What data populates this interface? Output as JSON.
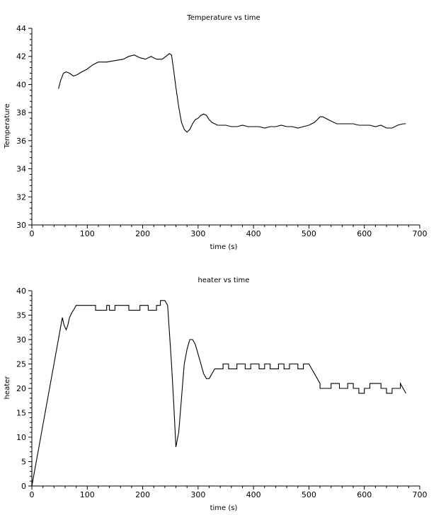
{
  "chart_data": [
    {
      "type": "line",
      "title": "Temperature vs time",
      "xlabel": "time (s)",
      "ylabel": "Temperature",
      "xlim": [
        0,
        700
      ],
      "ylim": [
        30,
        44
      ],
      "xticks": [
        0,
        100,
        200,
        300,
        400,
        500,
        600,
        700
      ],
      "yticks": [
        30,
        32,
        34,
        36,
        38,
        40,
        42,
        44
      ],
      "grid": false,
      "series": [
        {
          "x": [
            48,
            52,
            57,
            62,
            68,
            75,
            82,
            90,
            100,
            110,
            120,
            135,
            150,
            165,
            175,
            185,
            195,
            205,
            215,
            225,
            235,
            242,
            248,
            252,
            256,
            260,
            265,
            270,
            275,
            280,
            285,
            290,
            295,
            300,
            305,
            310,
            315,
            320,
            325,
            330,
            335,
            340,
            350,
            360,
            370,
            380,
            390,
            400,
            410,
            420,
            430,
            440,
            450,
            460,
            470,
            480,
            490,
            500,
            510,
            515,
            520,
            525,
            530,
            535,
            540,
            545,
            550,
            560,
            570,
            580,
            590,
            600,
            610,
            620,
            630,
            640,
            650,
            660,
            670,
            675
          ],
          "y": [
            39.7,
            40.3,
            40.8,
            40.9,
            40.8,
            40.6,
            40.7,
            40.9,
            41.1,
            41.4,
            41.6,
            41.6,
            41.7,
            41.8,
            42.0,
            42.1,
            41.9,
            41.8,
            42.0,
            41.8,
            41.8,
            42.0,
            42.2,
            42.1,
            41.0,
            39.8,
            38.4,
            37.3,
            36.8,
            36.6,
            36.8,
            37.2,
            37.5,
            37.6,
            37.8,
            37.9,
            37.8,
            37.5,
            37.3,
            37.2,
            37.1,
            37.1,
            37.1,
            37.0,
            37.0,
            37.1,
            37.0,
            37.0,
            37.0,
            36.9,
            37.0,
            37.0,
            37.1,
            37.0,
            37.0,
            36.9,
            37.0,
            37.1,
            37.3,
            37.5,
            37.7,
            37.7,
            37.6,
            37.5,
            37.4,
            37.3,
            37.2,
            37.2,
            37.2,
            37.2,
            37.1,
            37.1,
            37.1,
            37.0,
            37.1,
            36.9,
            36.9,
            37.1,
            37.2,
            37.2
          ]
        }
      ]
    },
    {
      "type": "line",
      "title": "heater vs time",
      "xlabel": "time (s)",
      "ylabel": "heater",
      "xlim": [
        0,
        700
      ],
      "ylim": [
        0,
        40
      ],
      "xticks": [
        0,
        100,
        200,
        300,
        400,
        500,
        600,
        700
      ],
      "yticks": [
        0,
        5,
        10,
        15,
        20,
        25,
        30,
        35,
        40
      ],
      "grid": false,
      "series": [
        {
          "x": [
            0,
            0,
            0,
            55,
            58,
            62,
            65,
            68,
            72,
            75,
            80,
            85,
            115,
            115,
            135,
            135,
            140,
            140,
            150,
            150,
            175,
            175,
            195,
            195,
            210,
            210,
            225,
            225,
            232,
            232,
            240,
            245,
            248,
            252,
            256,
            260,
            265,
            270,
            275,
            280,
            285,
            290,
            295,
            300,
            305,
            310,
            315,
            320,
            325,
            330,
            345,
            345,
            355,
            355,
            370,
            370,
            385,
            385,
            395,
            395,
            410,
            410,
            420,
            420,
            430,
            430,
            445,
            445,
            455,
            455,
            465,
            465,
            480,
            480,
            490,
            490,
            500,
            505,
            510,
            515,
            520,
            520,
            540,
            540,
            555,
            555,
            570,
            570,
            580,
            580,
            590,
            590,
            600,
            600,
            610,
            610,
            630,
            630,
            640,
            640,
            650,
            650,
            665,
            665,
            675
          ],
          "y": [
            0,
            5,
            0,
            34.5,
            33,
            32,
            33,
            34.5,
            35.5,
            36,
            37,
            37,
            37,
            36,
            36,
            37,
            37,
            36,
            36,
            37,
            37,
            36,
            36,
            37,
            37,
            36,
            36,
            37,
            37,
            38,
            38,
            37,
            32,
            25,
            17,
            8,
            11,
            18,
            25,
            28,
            30,
            30,
            29,
            27,
            25,
            23,
            22,
            22,
            23,
            24,
            24,
            25,
            25,
            24,
            24,
            25,
            25,
            24,
            24,
            25,
            25,
            24,
            24,
            25,
            25,
            24,
            24,
            25,
            25,
            24,
            24,
            25,
            25,
            24,
            24,
            25,
            25,
            24,
            23,
            22,
            21,
            20,
            20,
            21,
            21,
            20,
            20,
            21,
            21,
            20,
            20,
            19,
            19,
            20,
            20,
            21,
            21,
            20,
            20,
            19,
            19,
            20,
            20,
            21,
            19
          ]
        }
      ]
    }
  ]
}
